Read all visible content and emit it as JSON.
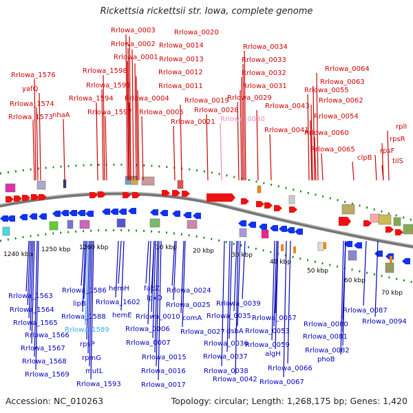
{
  "title": "Rickettsia rickettsii str. Iowa, complete genome",
  "footer": {
    "accession": "Accession: NC_010263",
    "summary": "Topology: circular; Length: 1,268,175 bp; Genes: 1,420"
  },
  "colors": {
    "top_label": "#cc0000",
    "top_label_highlight": "#ee88bb",
    "bottom_label": "#0000bb",
    "bottom_label_highlight": "#33aaee",
    "forward_arrow": "#ee1111",
    "reverse_arrow": "#1133ee",
    "backbone": "#888888",
    "tick_dot": "#228822"
  },
  "scale_labels": [
    "1240 kbp",
    "1250 kbp",
    "1260 kbp",
    "10 kbp",
    "20 kbp",
    "30 kbp",
    "40 kbp",
    "50 kbp",
    "60 kbp",
    "70 kbp"
  ],
  "top_labels": [
    {
      "text": "Rrlowa_0003"
    },
    {
      "text": "Rrlowa_0020"
    },
    {
      "text": "Rrlowa_0002"
    },
    {
      "text": "Rrlowa_0014"
    },
    {
      "text": "Rrlowa_0034"
    },
    {
      "text": "Rrlowa_0001"
    },
    {
      "text": "Rrlowa_0013"
    },
    {
      "text": "Rrlowa_0033"
    },
    {
      "text": "Rrlowa_0064"
    },
    {
      "text": "Rrlowa_1576"
    },
    {
      "text": "Rrlowa_1598"
    },
    {
      "text": "Rrlowa_0012"
    },
    {
      "text": "Rrlowa_0032"
    },
    {
      "text": "Rrlowa_0063"
    },
    {
      "text": "yafQ"
    },
    {
      "text": "Rrlowa_1595"
    },
    {
      "text": "Rrlowa_0011"
    },
    {
      "text": "Rrlowa_0031"
    },
    {
      "text": "Rrlowa_0055"
    },
    {
      "text": "Rrlowa_1574"
    },
    {
      "text": "Rrlowa_1594"
    },
    {
      "text": "Rrlowa_0004"
    },
    {
      "text": "Rrlowa_0019"
    },
    {
      "text": "Rrlowa_0029"
    },
    {
      "text": "Rrlowa_0062"
    },
    {
      "text": "nhaA"
    },
    {
      "text": "Rrlowa_0043"
    },
    {
      "text": "Rrlowa_1597"
    },
    {
      "text": "Rrlowa_0005"
    },
    {
      "text": "Rrlowa_0028"
    },
    {
      "text": "Rrlowa_0054"
    },
    {
      "text": "Rrlowa_1573"
    },
    {
      "text": "Rrlowa_0030",
      "highlight": true
    },
    {
      "text": "rplI"
    },
    {
      "text": "Rrlowa_0021"
    },
    {
      "text": "Rrlowa_0041"
    },
    {
      "text": "Rrlowa_0060"
    },
    {
      "text": "rpsR"
    },
    {
      "text": "Rrlowa_0065"
    },
    {
      "text": "rpsF"
    },
    {
      "text": "clpB"
    },
    {
      "text": "tilS"
    }
  ],
  "bottom_labels": [
    {
      "text": "Rrlowa_1586"
    },
    {
      "text": "hemH"
    },
    {
      "text": "fabZ"
    },
    {
      "text": "Rrlowa_0024"
    },
    {
      "text": "Rrlowa_1563"
    },
    {
      "text": "lpxD"
    },
    {
      "text": "Rrlowa_1602"
    },
    {
      "text": "lipB"
    },
    {
      "text": "Rrlowa_0025"
    },
    {
      "text": "Rrlowa_0039"
    },
    {
      "text": "Rrlowa_0087"
    },
    {
      "text": "Rrlowa_1564"
    },
    {
      "text": "Rrlowa_0010"
    },
    {
      "text": "comA"
    },
    {
      "text": "Rrlowa_1588"
    },
    {
      "text": "hemE"
    },
    {
      "text": "Rrlowa_0035"
    },
    {
      "text": "Rrlowa_0057"
    },
    {
      "text": "Rrlowa_0094"
    },
    {
      "text": "Rrlowa_1565"
    },
    {
      "text": "Rrlowa_0080"
    },
    {
      "text": "Rrlowa_0006"
    },
    {
      "text": "Rrlowa_1589",
      "highlight": true
    },
    {
      "text": "Rrlowa_0027"
    },
    {
      "text": "dsbA"
    },
    {
      "text": "Rrlowa_0053"
    },
    {
      "text": "Rrlowa_1566"
    },
    {
      "text": "Rrlowa_0081"
    },
    {
      "text": "Rrlowa_0007"
    },
    {
      "text": "rpsP"
    },
    {
      "text": "Rrlowa_0036"
    },
    {
      "text": "Rrlowa_0059"
    },
    {
      "text": "Rrlowa_1567"
    },
    {
      "text": "algH"
    },
    {
      "text": "Rrlowa_0082"
    },
    {
      "text": "Rrlowa_0015"
    },
    {
      "text": "rpmG"
    },
    {
      "text": "Rrlowa_0037"
    },
    {
      "text": "phoB"
    },
    {
      "text": "Rrlowa_1568"
    },
    {
      "text": "Rrlowa_0066"
    },
    {
      "text": "mutL"
    },
    {
      "text": "Rrlowa_0016"
    },
    {
      "text": "Rrlowa_0038"
    },
    {
      "text": "Rrlowa_1569"
    },
    {
      "text": "Rrlowa_0042"
    },
    {
      "text": "Rrlowa_0067"
    },
    {
      "text": "Rrlowa_1593"
    },
    {
      "text": "Rrlowa_0017"
    }
  ]
}
